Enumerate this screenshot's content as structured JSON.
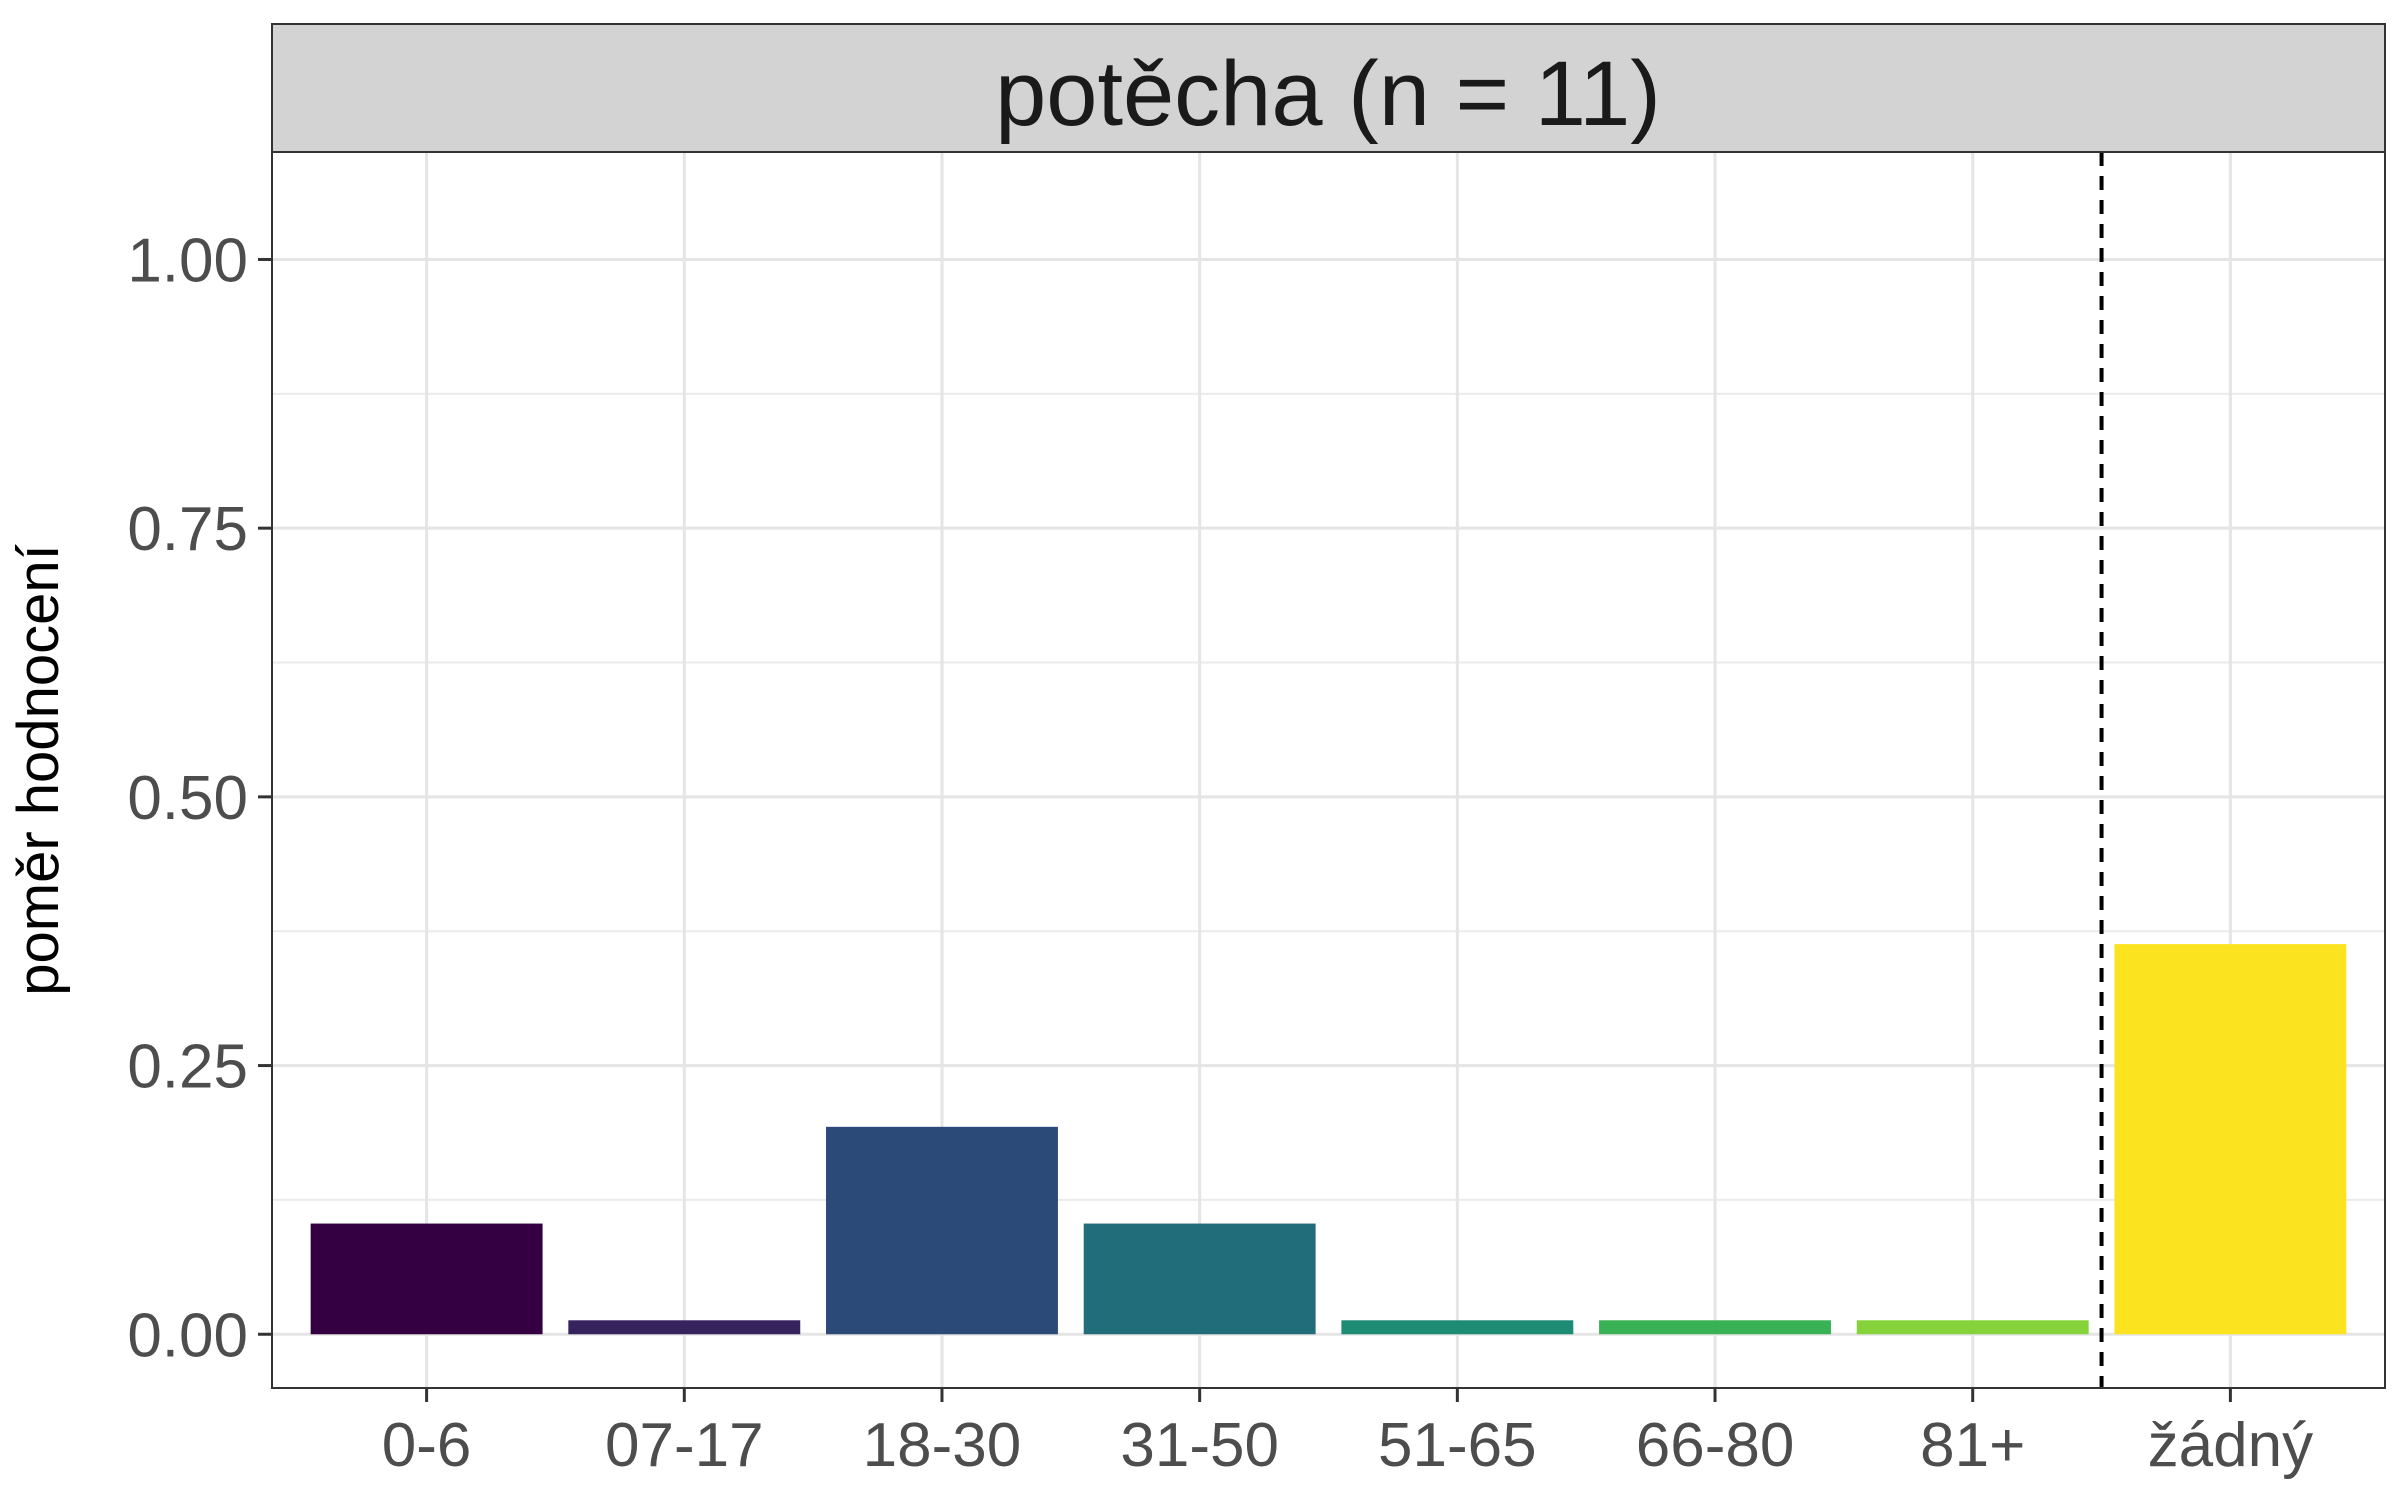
{
  "chart_data": {
    "type": "bar",
    "panel_title": "potěcha (n = 11)",
    "xlabel": "",
    "ylabel": "poměr hodnocení",
    "categories": [
      "0-6",
      "07-17",
      "18-30",
      "31-50",
      "51-65",
      "66-80",
      "81+",
      "žádný"
    ],
    "values": [
      0.103,
      0.013,
      0.193,
      0.103,
      0.013,
      0.013,
      0.013,
      0.363
    ],
    "colors": [
      "#340042",
      "#36235e",
      "#2c4a78",
      "#216e7a",
      "#1e8c74",
      "#38b255",
      "#86d23a",
      "#fbe41f"
    ],
    "ylim": [
      -0.05,
      1.1
    ],
    "yticks": [
      0.0,
      0.25,
      0.5,
      0.75,
      1.0
    ],
    "ytick_labels": [
      "0.00",
      "0.25",
      "0.50",
      "0.75",
      "1.00"
    ],
    "separator_after_category": "81+",
    "grid": true,
    "legend": "none"
  }
}
